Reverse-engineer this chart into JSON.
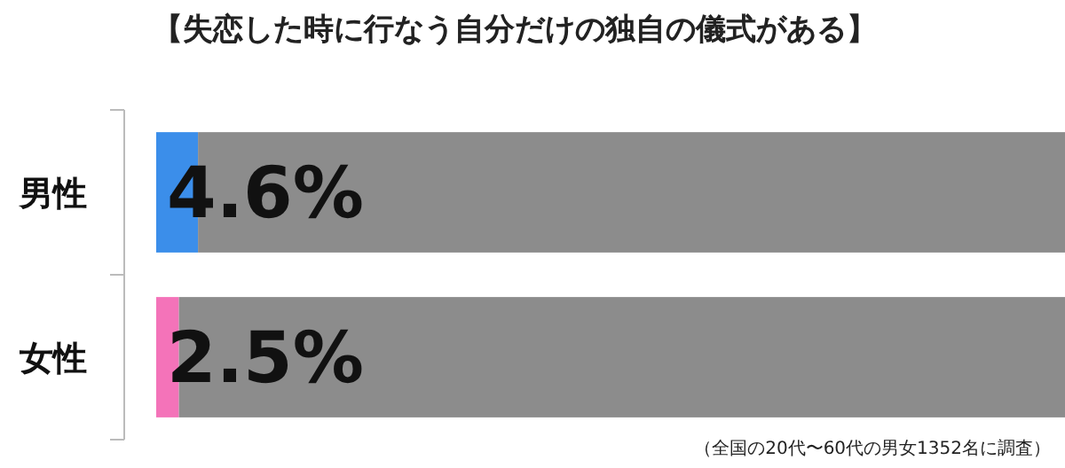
{
  "chart_data": {
    "type": "bar",
    "orientation": "horizontal",
    "stacked": true,
    "title": "【失恋した時に行なう自分だけの独自の儀式がある】",
    "categories": [
      "男性",
      "女性"
    ],
    "series": [
      {
        "colors": [
          "#3b8eea",
          "#f473b9"
        ],
        "values": [
          4.6,
          2.5
        ],
        "value_labels": [
          "4.6%",
          "2.5%"
        ]
      },
      {
        "color": "#8c8c8c",
        "values": [
          95.4,
          97.5
        ]
      }
    ],
    "annotations": [
      "（全国の20代〜60代の男女1352名に調査）"
    ]
  }
}
